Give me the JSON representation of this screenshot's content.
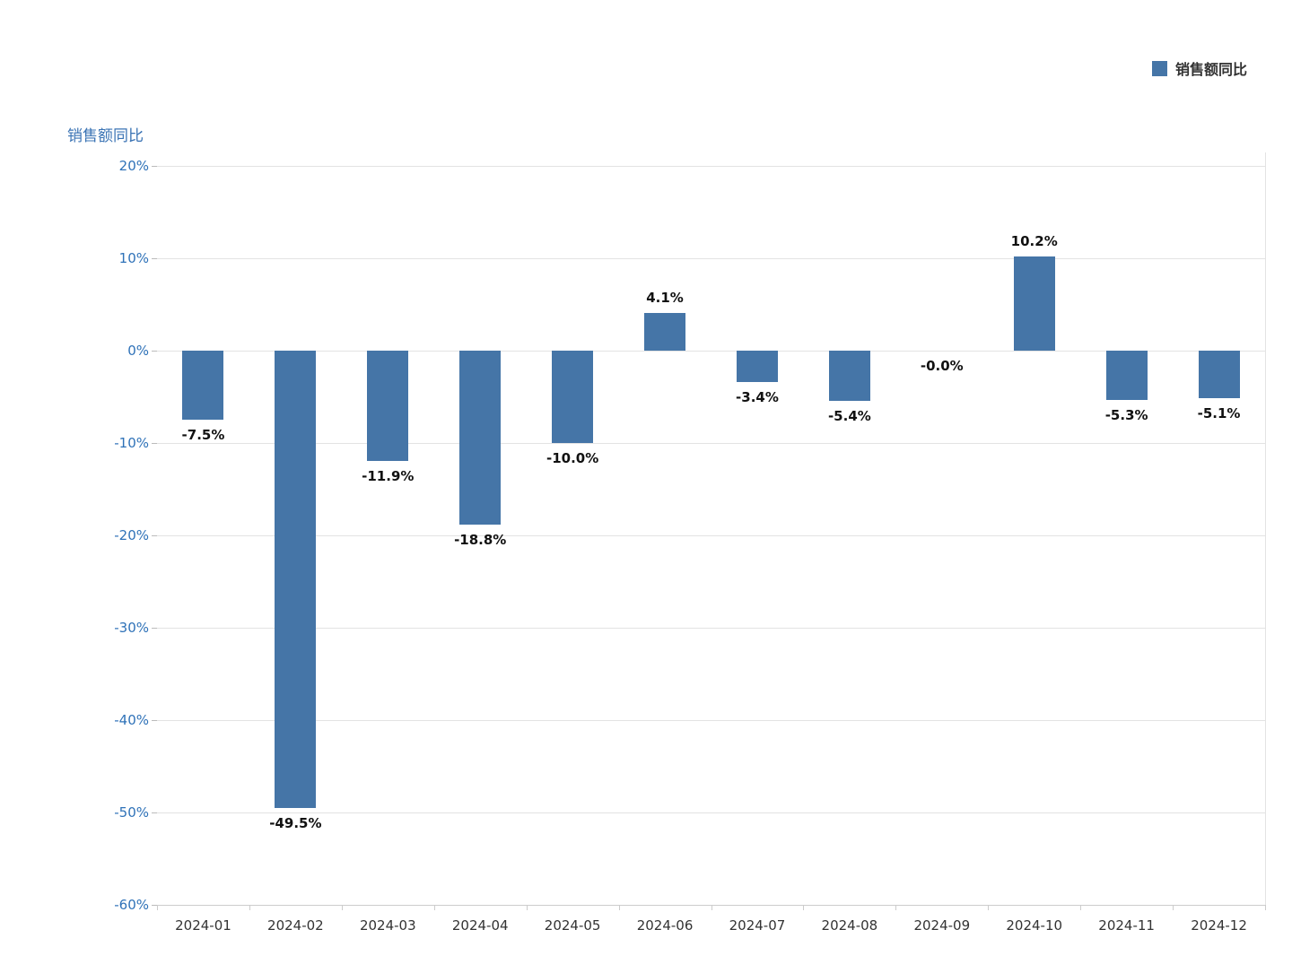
{
  "title": "销售额同比",
  "legend": {
    "label": "销售额同比"
  },
  "colors": {
    "bar_color": "#4575a7",
    "axis_label_blue": "#2f72b8",
    "title_blue": "#3a73b4",
    "grid": "#e3e3e3",
    "text_dark": "#333333",
    "data_label": "#111111"
  },
  "chart_data": {
    "type": "bar",
    "title": "销售额同比",
    "series_name": "销售额同比",
    "categories": [
      "2024-01",
      "2024-02",
      "2024-03",
      "2024-04",
      "2024-05",
      "2024-06",
      "2024-07",
      "2024-08",
      "2024-09",
      "2024-10",
      "2024-11",
      "2024-12"
    ],
    "values": [
      -7.5,
      -49.5,
      -11.9,
      -18.8,
      -10.0,
      4.1,
      -3.4,
      -5.4,
      -0.0,
      10.2,
      -5.3,
      -5.1
    ],
    "data_labels": [
      "-7.5%",
      "-49.5%",
      "-11.9%",
      "-18.8%",
      "-10.0%",
      "4.1%",
      "-3.4%",
      "-5.4%",
      "-0.0%",
      "10.2%",
      "-5.3%",
      "-5.1%"
    ],
    "xlabel": "",
    "ylabel": "",
    "ylim": [
      -60,
      20
    ],
    "y_tick_values": [
      20,
      10,
      0,
      -10,
      -20,
      -30,
      -40,
      -50,
      -60
    ],
    "y_tick_labels": [
      "20%",
      "10%",
      "0%",
      "-10%",
      "-20%",
      "-30%",
      "-40%",
      "-50%",
      "-60%"
    ],
    "grid": true,
    "legend_position": "top-right",
    "bar_color": "#4575a7"
  }
}
